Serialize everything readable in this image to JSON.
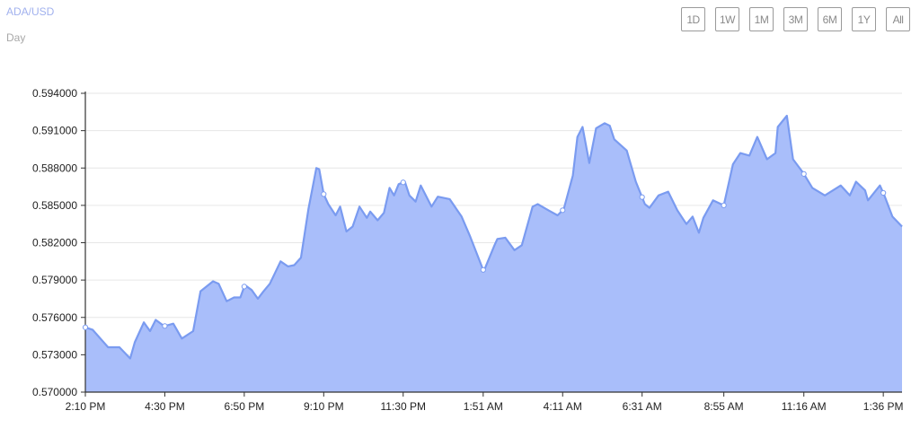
{
  "header": {
    "title": "ADA/USD",
    "subtitle": "Day"
  },
  "ranges": [
    "1D",
    "1W",
    "1M",
    "3M",
    "6M",
    "1Y",
    "All"
  ],
  "colors": {
    "fill": "#a9befa",
    "line": "#7a9bf0",
    "title": "#a1b1ee",
    "grid": "#e6e6e6"
  },
  "chart_data": {
    "type": "area",
    "title": "ADA/USD",
    "xlabel": "",
    "ylabel": "",
    "ylim": [
      0.57,
      0.594
    ],
    "yticks": [
      "0.594000",
      "0.591000",
      "0.588000",
      "0.585000",
      "0.582000",
      "0.579000",
      "0.576000",
      "0.573000",
      "0.570000"
    ],
    "xticks": [
      "2:10 PM",
      "4:30 PM",
      "6:50 PM",
      "9:10 PM",
      "11:30 PM",
      "1:51 AM",
      "4:11 AM",
      "6:31 AM",
      "8:55 AM",
      "11:16 AM",
      "1:36 PM"
    ],
    "grid": true,
    "x": [
      "2:10 PM",
      "2:23 PM",
      "2:50 PM",
      "3:10 PM",
      "3:29 PM",
      "3:37 PM",
      "3:53 PM",
      "4:04 PM",
      "4:14 PM",
      "4:29 PM",
      "4:45 PM",
      "5:00 PM",
      "5:20 PM",
      "5:33 PM",
      "5:55 PM",
      "6:05 PM",
      "6:19 PM",
      "6:32 PM",
      "6:43 PM",
      "6:51 PM",
      "7:03 PM",
      "7:14 PM",
      "7:24 PM",
      "7:35 PM",
      "7:54 PM",
      "8:07 PM",
      "8:18 PM",
      "8:30 PM",
      "8:43 PM",
      "8:57 PM",
      "9:02 PM",
      "9:10 PM",
      "9:18 PM",
      "9:31 PM",
      "9:39 PM",
      "9:50 PM",
      "10:01 PM",
      "10:13 PM",
      "10:26 PM",
      "10:32 PM",
      "10:45 PM",
      "10:56 PM",
      "11:06 PM",
      "11:14 PM",
      "11:22 PM",
      "11:33 PM",
      "11:41 PM",
      "11:52 PM",
      "12:01 AM",
      "12:20 AM",
      "12:31 AM",
      "12:52 AM",
      "1:13 AM",
      "1:28 AM",
      "1:52 AM",
      "2:11 AM",
      "2:16 AM",
      "2:30 AM",
      "2:46 AM",
      "2:59 AM",
      "3:18 AM",
      "3:27 AM",
      "3:46 AM",
      "4:02 AM",
      "4:13 AM",
      "4:29 AM",
      "4:37 AM",
      "4:46 AM",
      "4:58 AM",
      "5:10 AM",
      "5:25 AM",
      "5:34 AM",
      "5:42 AM",
      "6:04 AM",
      "6:20 AM",
      "6:36 AM",
      "6:44 AM",
      "7:00 AM",
      "7:17 AM",
      "7:33 AM",
      "7:49 AM",
      "8:00 AM",
      "8:11 AM",
      "8:19 AM",
      "8:36 AM",
      "8:55 AM",
      "9:11 AM",
      "9:24 AM",
      "9:40 AM",
      "9:54 AM",
      "10:11 AM",
      "10:26 AM",
      "10:30 AM",
      "10:46 AM",
      "10:57 AM",
      "11:15 AM",
      "11:31 AM",
      "11:53 AM",
      "12:21 PM",
      "12:37 PM",
      "12:48 PM",
      "1:04 PM",
      "1:09 PM",
      "1:30 PM",
      "1:37 PM",
      "1:52 PM",
      "2:09 PM"
    ],
    "y": [
      0.5752,
      0.575,
      0.5736,
      0.5736,
      0.5727,
      0.574,
      0.5756,
      0.5749,
      0.5758,
      0.5753,
      0.5755,
      0.5743,
      0.5749,
      0.5781,
      0.5789,
      0.5787,
      0.5773,
      0.5776,
      0.5776,
      0.5786,
      0.5782,
      0.5775,
      0.5781,
      0.5787,
      0.5805,
      0.5801,
      0.5802,
      0.5808,
      0.5847,
      0.588,
      0.5879,
      0.5859,
      0.5851,
      0.5842,
      0.5849,
      0.5829,
      0.5833,
      0.5849,
      0.584,
      0.5845,
      0.5838,
      0.5844,
      0.5864,
      0.5858,
      0.5867,
      0.5869,
      0.5858,
      0.5853,
      0.5866,
      0.5849,
      0.5857,
      0.5855,
      0.5841,
      0.5825,
      0.5797,
      0.5818,
      0.5823,
      0.5824,
      0.5814,
      0.5818,
      0.5849,
      0.5851,
      0.5846,
      0.5842,
      0.5847,
      0.5874,
      0.5905,
      0.5913,
      0.5884,
      0.5912,
      0.5916,
      0.5914,
      0.5903,
      0.5894,
      0.5869,
      0.5851,
      0.5848,
      0.5858,
      0.5861,
      0.5846,
      0.5835,
      0.5841,
      0.5828,
      0.584,
      0.5854,
      0.585,
      0.5883,
      0.5892,
      0.589,
      0.5905,
      0.5887,
      0.5892,
      0.5913,
      0.5922,
      0.5887,
      0.5876,
      0.5864,
      0.5858,
      0.5866,
      0.5858,
      0.5869,
      0.5862,
      0.5854,
      0.5866,
      0.5859,
      0.5841,
      0.5833
    ]
  }
}
